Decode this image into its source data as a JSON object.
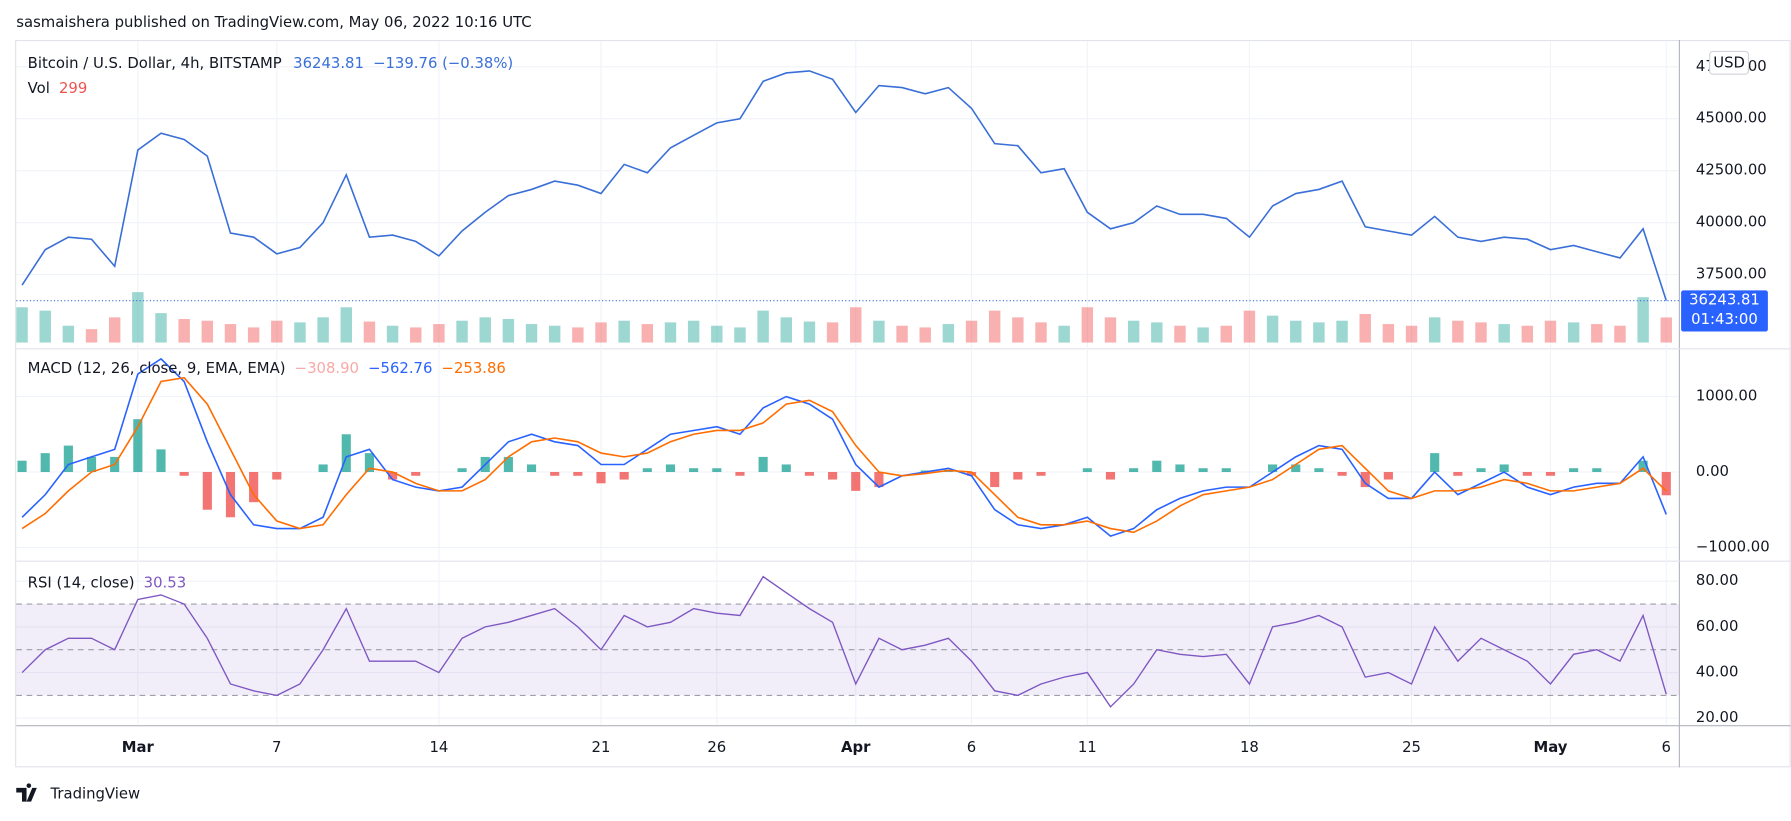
{
  "header": "sasmaishera published on TradingView.com, May 06, 2022 10:16 UTC",
  "footer": "TradingView",
  "chart_data": [
    {
      "type": "line",
      "title": "Bitcoin / U.S. Dollar, 4h, BITSTAMP",
      "change": "−139.76 (−0.38%)",
      "countdown": "01:43:00",
      "currency": "USD",
      "x": [
        "2022-02-24",
        "2022-02-25",
        "2022-02-26",
        "2022-02-27",
        "2022-02-28",
        "2022-03-01",
        "2022-03-02",
        "2022-03-03",
        "2022-03-04",
        "2022-03-05",
        "2022-03-06",
        "2022-03-07",
        "2022-03-08",
        "2022-03-09",
        "2022-03-10",
        "2022-03-11",
        "2022-03-12",
        "2022-03-13",
        "2022-03-14",
        "2022-03-15",
        "2022-03-16",
        "2022-03-17",
        "2022-03-18",
        "2022-03-19",
        "2022-03-20",
        "2022-03-21",
        "2022-03-22",
        "2022-03-23",
        "2022-03-24",
        "2022-03-25",
        "2022-03-26",
        "2022-03-27",
        "2022-03-28",
        "2022-03-29",
        "2022-03-30",
        "2022-03-31",
        "2022-04-01",
        "2022-04-02",
        "2022-04-03",
        "2022-04-04",
        "2022-04-05",
        "2022-04-06",
        "2022-04-07",
        "2022-04-08",
        "2022-04-09",
        "2022-04-10",
        "2022-04-11",
        "2022-04-12",
        "2022-04-13",
        "2022-04-14",
        "2022-04-15",
        "2022-04-16",
        "2022-04-17",
        "2022-04-18",
        "2022-04-19",
        "2022-04-20",
        "2022-04-21",
        "2022-04-22",
        "2022-04-23",
        "2022-04-24",
        "2022-04-25",
        "2022-04-26",
        "2022-04-27",
        "2022-04-28",
        "2022-04-29",
        "2022-04-30",
        "2022-05-01",
        "2022-05-02",
        "2022-05-03",
        "2022-05-04",
        "2022-05-05",
        "2022-05-06"
      ],
      "xlim": [
        "2022-02-23T18:00Z",
        "2022-05-06T13:00Z"
      ],
      "xticks": [
        {
          "value": "2022-03-01",
          "label": "Mar"
        },
        {
          "value": "2022-03-07",
          "label": "7"
        },
        {
          "value": "2022-03-14",
          "label": "14"
        },
        {
          "value": "2022-03-21",
          "label": "21"
        },
        {
          "value": "2022-03-26",
          "label": "26"
        },
        {
          "value": "2022-04-01",
          "label": "Apr"
        },
        {
          "value": "2022-04-06",
          "label": "6"
        },
        {
          "value": "2022-04-11",
          "label": "11"
        },
        {
          "value": "2022-04-18",
          "label": "18"
        },
        {
          "value": "2022-04-25",
          "label": "25"
        },
        {
          "value": "2022-05-01",
          "label": "May"
        },
        {
          "value": "2022-05-06",
          "label": "6"
        }
      ],
      "ylim": [
        34230,
        48790
      ],
      "yticks": [
        {
          "value": 37500,
          "label": "37500.00"
        },
        {
          "value": 40000,
          "label": "40000.00"
        },
        {
          "value": 42500,
          "label": "42500.00"
        },
        {
          "value": 45000,
          "label": "45000.00"
        },
        {
          "value": 47500,
          "label": "47500.00"
        }
      ],
      "grid": true,
      "series": [
        {
          "name": "Bitcoin / U.S. Dollar",
          "color": "#3a6fd8",
          "values": [
            37000,
            38700,
            39300,
            39200,
            37900,
            43500,
            44300,
            44000,
            43200,
            39500,
            39300,
            38500,
            38800,
            40000,
            42300,
            39300,
            39400,
            39100,
            38400,
            39600,
            40500,
            41300,
            41600,
            42000,
            41800,
            41400,
            42800,
            42400,
            43600,
            44200,
            44800,
            45000,
            46800,
            47200,
            47300,
            46900,
            45300,
            46600,
            46500,
            46200,
            46500,
            45500,
            43800,
            43700,
            42400,
            42600,
            40500,
            39700,
            40000,
            40800,
            40400,
            40400,
            40200,
            39300,
            40800,
            41400,
            41600,
            42000,
            39800,
            39600,
            39400,
            40300,
            39300,
            39100,
            39300,
            39200,
            38700,
            38900,
            38600,
            38300,
            39700,
            36243.81
          ]
        }
      ],
      "volume": {
        "name": "Vol",
        "up_color": "#26a69a",
        "down_color": "#ef5350",
        "vlim": [
          0,
          3600
        ],
        "values": [
          420,
          380,
          200,
          160,
          300,
          600,
          350,
          280,
          260,
          220,
          180,
          260,
          240,
          300,
          420,
          250,
          200,
          180,
          220,
          260,
          300,
          280,
          220,
          200,
          180,
          240,
          260,
          220,
          240,
          260,
          200,
          180,
          380,
          300,
          250,
          240,
          420,
          260,
          200,
          180,
          220,
          260,
          380,
          300,
          240,
          200,
          420,
          300,
          260,
          240,
          200,
          180,
          200,
          380,
          320,
          260,
          240,
          260,
          340,
          220,
          200,
          300,
          260,
          240,
          220,
          200,
          260,
          240,
          220,
          200,
          540,
          299
        ]
      }
    },
    {
      "type": "macd",
      "title": "MACD (12, 26, close, 9, EMA, EMA)",
      "legend_values": [
        "−308.90",
        "−562.76",
        "−253.86"
      ],
      "ylim": [
        -1160,
        1625
      ],
      "yticks": [
        {
          "value": -1000,
          "label": "−1000.00"
        },
        {
          "value": 0,
          "label": "0.00"
        },
        {
          "value": 1000,
          "label": "1000.00"
        }
      ],
      "histogram": {
        "name": "Histogram",
        "up_color": "#26a69a",
        "down_color": "#ef5350",
        "values": [
          150,
          250,
          350,
          200,
          200,
          700,
          300,
          -50,
          -500,
          -600,
          -400,
          -100,
          0,
          100,
          500,
          250,
          -100,
          -50,
          0,
          50,
          200,
          200,
          100,
          -50,
          -50,
          -150,
          -100,
          50,
          100,
          50,
          50,
          -50,
          200,
          100,
          -50,
          -100,
          -250,
          -200,
          0,
          20,
          30,
          -50,
          -200,
          -100,
          -50,
          0,
          50,
          -100,
          50,
          150,
          100,
          50,
          50,
          0,
          100,
          100,
          50,
          -50,
          -200,
          -100,
          0,
          250,
          -50,
          50,
          100,
          -50,
          -50,
          50,
          50,
          0,
          150,
          -308.9
        ]
      },
      "series": [
        {
          "name": "MACD",
          "color": "#2962ff",
          "values": [
            -600,
            -300,
            100,
            200,
            300,
            1300,
            1500,
            1200,
            400,
            -300,
            -700,
            -750,
            -750,
            -600,
            200,
            300,
            -100,
            -200,
            -250,
            -200,
            100,
            400,
            500,
            400,
            350,
            100,
            100,
            300,
            500,
            550,
            600,
            500,
            850,
            1000,
            900,
            700,
            100,
            -200,
            -50,
            0,
            50,
            -50,
            -500,
            -700,
            -750,
            -700,
            -600,
            -850,
            -750,
            -500,
            -350,
            -250,
            -200,
            -200,
            0,
            200,
            350,
            300,
            -150,
            -350,
            -350,
            0,
            -300,
            -150,
            0,
            -200,
            -300,
            -200,
            -150,
            -150,
            200,
            -562.76
          ]
        },
        {
          "name": "Signal",
          "color": "#ff6d00",
          "values": [
            -750,
            -550,
            -250,
            0,
            100,
            600,
            1200,
            1250,
            900,
            300,
            -300,
            -650,
            -750,
            -700,
            -300,
            50,
            0,
            -150,
            -250,
            -250,
            -100,
            200,
            400,
            450,
            400,
            250,
            200,
            250,
            400,
            500,
            550,
            550,
            650,
            900,
            950,
            800,
            350,
            0,
            -50,
            -20,
            20,
            0,
            -300,
            -600,
            -700,
            -700,
            -650,
            -750,
            -800,
            -650,
            -450,
            -300,
            -250,
            -200,
            -100,
            100,
            300,
            350,
            50,
            -250,
            -350,
            -250,
            -250,
            -200,
            -100,
            -150,
            -250,
            -250,
            -200,
            -150,
            50,
            -253.86
          ]
        }
      ]
    },
    {
      "type": "rsi",
      "title": "RSI (14, close)",
      "legend_value": "30.53",
      "band": [
        30,
        70
      ],
      "levels": [
        70,
        50,
        30
      ],
      "band_color": "#7e57c2",
      "ylim": [
        17.5,
        88
      ],
      "yticks": [
        {
          "value": 20,
          "label": "20.00"
        },
        {
          "value": 40,
          "label": "40.00"
        },
        {
          "value": 60,
          "label": "60.00"
        },
        {
          "value": 80,
          "label": "80.00"
        }
      ],
      "series": [
        {
          "name": "RSI",
          "color": "#7e57c2",
          "values": [
            40,
            50,
            55,
            55,
            50,
            72,
            74,
            70,
            55,
            35,
            32,
            30,
            35,
            50,
            68,
            45,
            45,
            45,
            40,
            55,
            60,
            62,
            65,
            68,
            60,
            50,
            65,
            60,
            62,
            68,
            66,
            65,
            82,
            75,
            68,
            62,
            35,
            55,
            50,
            52,
            55,
            45,
            32,
            30,
            35,
            38,
            40,
            25,
            35,
            50,
            48,
            47,
            48,
            35,
            60,
            62,
            65,
            60,
            38,
            40,
            35,
            60,
            45,
            55,
            50,
            45,
            35,
            48,
            50,
            45,
            65,
            30.53
          ]
        }
      ]
    }
  ]
}
